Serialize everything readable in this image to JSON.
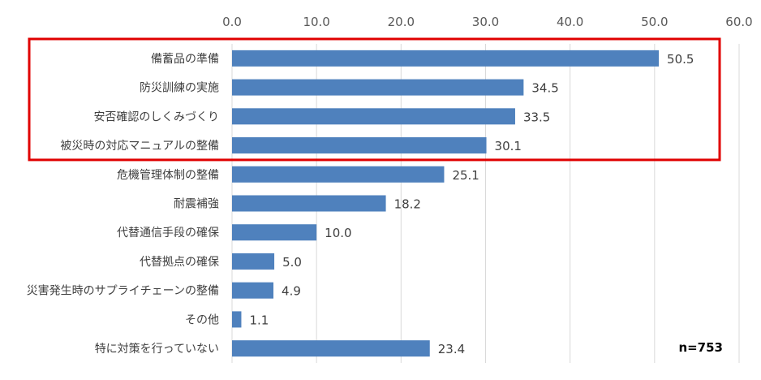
{
  "chart_data": {
    "type": "bar",
    "orientation": "horizontal",
    "categories": [
      "備蓄品の準備",
      "防災訓練の実施",
      "安否確認のしくみづくり",
      "被災時の対応マニュアルの整備",
      "危機管理体制の整備",
      "耐震補強",
      "代替通信手段の確保",
      "代替拠点の確保",
      "災害発生時のサプライチェーンの整備",
      "その他",
      "特に対策を行っていない"
    ],
    "values": [
      50.5,
      34.5,
      33.5,
      30.1,
      25.1,
      18.2,
      10.0,
      5.0,
      4.9,
      1.1,
      23.4
    ],
    "value_labels": [
      "50.5",
      "34.5",
      "33.5",
      "30.1",
      "25.1",
      "18.2",
      "10.0",
      "5.0",
      "4.9",
      "1.1",
      "23.4"
    ],
    "xlim": [
      0,
      60
    ],
    "x_ticks": [
      "0.0",
      "10.0",
      "20.0",
      "30.0",
      "40.0",
      "50.0",
      "60.0"
    ],
    "x_axis_position": "top",
    "grid": true,
    "highlighted_categories": [
      0,
      1,
      2,
      3
    ],
    "note": "n=753",
    "colors": {
      "bar": "#4f81bd",
      "highlight_box": "#e00000",
      "grid": "#d9d9d9"
    }
  }
}
